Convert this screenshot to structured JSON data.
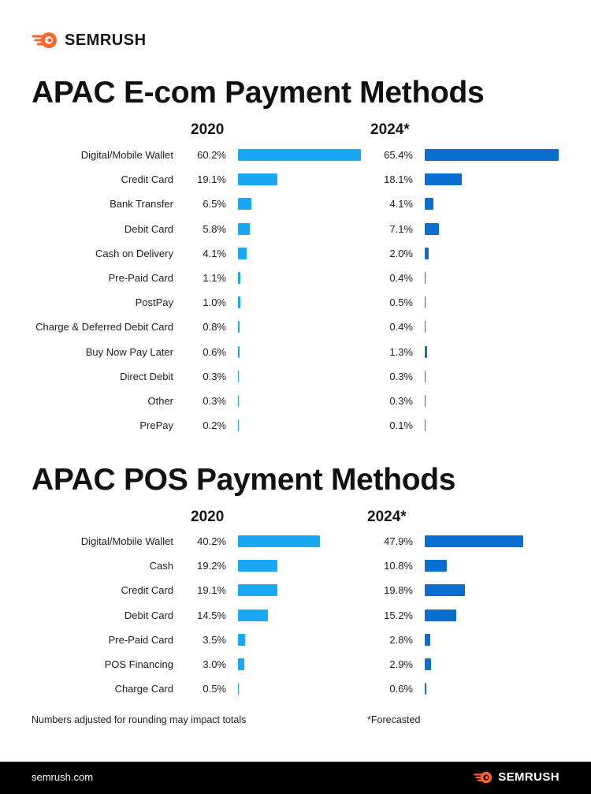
{
  "brand": {
    "name": "SEMRUSH",
    "accent": "#ff642d"
  },
  "colors": {
    "bar2020": "#1aa8f5",
    "bar2024": "#0a6fd0"
  },
  "footer": {
    "url": "semrush.com",
    "brand": "SEMRUSH"
  },
  "footnotes": {
    "rounding": "Numbers adjusted for rounding may impact totals",
    "forecast": "*Forecasted"
  },
  "chart_data": [
    {
      "type": "bar",
      "orientation": "horizontal",
      "title": "APAC E-com Payment Methods",
      "categories": [
        "Digital/Mobile Wallet",
        "Credit Card",
        "Bank Transfer",
        "Debit Card",
        "Cash on Delivery",
        "Pre-Paid Card",
        "PostPay",
        "Charge & Deferred Debit Card",
        "Buy Now Pay Later",
        "Direct Debit",
        "Other",
        "PrePay"
      ],
      "series": [
        {
          "name": "2020",
          "values": [
            60.2,
            19.1,
            6.5,
            5.8,
            4.1,
            1.1,
            1.0,
            0.8,
            0.6,
            0.3,
            0.3,
            0.2
          ],
          "labels": [
            "60.2%",
            "19.1%",
            "6.5%",
            "5.8%",
            "4.1%",
            "1.1%",
            "1.0%",
            "0.8%",
            "0.6%",
            "0.3%",
            "0.3%",
            "0.2%"
          ]
        },
        {
          "name": "2024*",
          "values": [
            65.4,
            18.1,
            4.1,
            7.1,
            2.0,
            0.4,
            0.5,
            0.4,
            1.3,
            0.3,
            0.3,
            0.1
          ],
          "labels": [
            "65.4%",
            "18.1%",
            "4.1%",
            "7.1%",
            "2.0%",
            "0.4%",
            "0.5%",
            "0.4%",
            "1.3%",
            "0.3%",
            "0.3%",
            "0.1%"
          ]
        }
      ]
    },
    {
      "type": "bar",
      "orientation": "horizontal",
      "title": "APAC POS Payment Methods",
      "categories": [
        "Digital/Mobile Wallet",
        "Cash",
        "Credit Card",
        "Debit Card",
        "Pre-Paid Card",
        "POS Financing",
        "Charge Card"
      ],
      "series": [
        {
          "name": "2020",
          "values": [
            40.2,
            19.2,
            19.1,
            14.5,
            3.5,
            3.0,
            0.5
          ],
          "labels": [
            "40.2%",
            "19.2%",
            "19.1%",
            "14.5%",
            "3.5%",
            "3.0%",
            "0.5%"
          ]
        },
        {
          "name": "2024*",
          "values": [
            47.9,
            10.8,
            19.8,
            15.2,
            2.8,
            2.9,
            0.6
          ],
          "labels": [
            "47.9%",
            "10.8%",
            "19.8%",
            "15.2%",
            "2.8%",
            "2.9%",
            "0.6%"
          ]
        }
      ]
    }
  ]
}
